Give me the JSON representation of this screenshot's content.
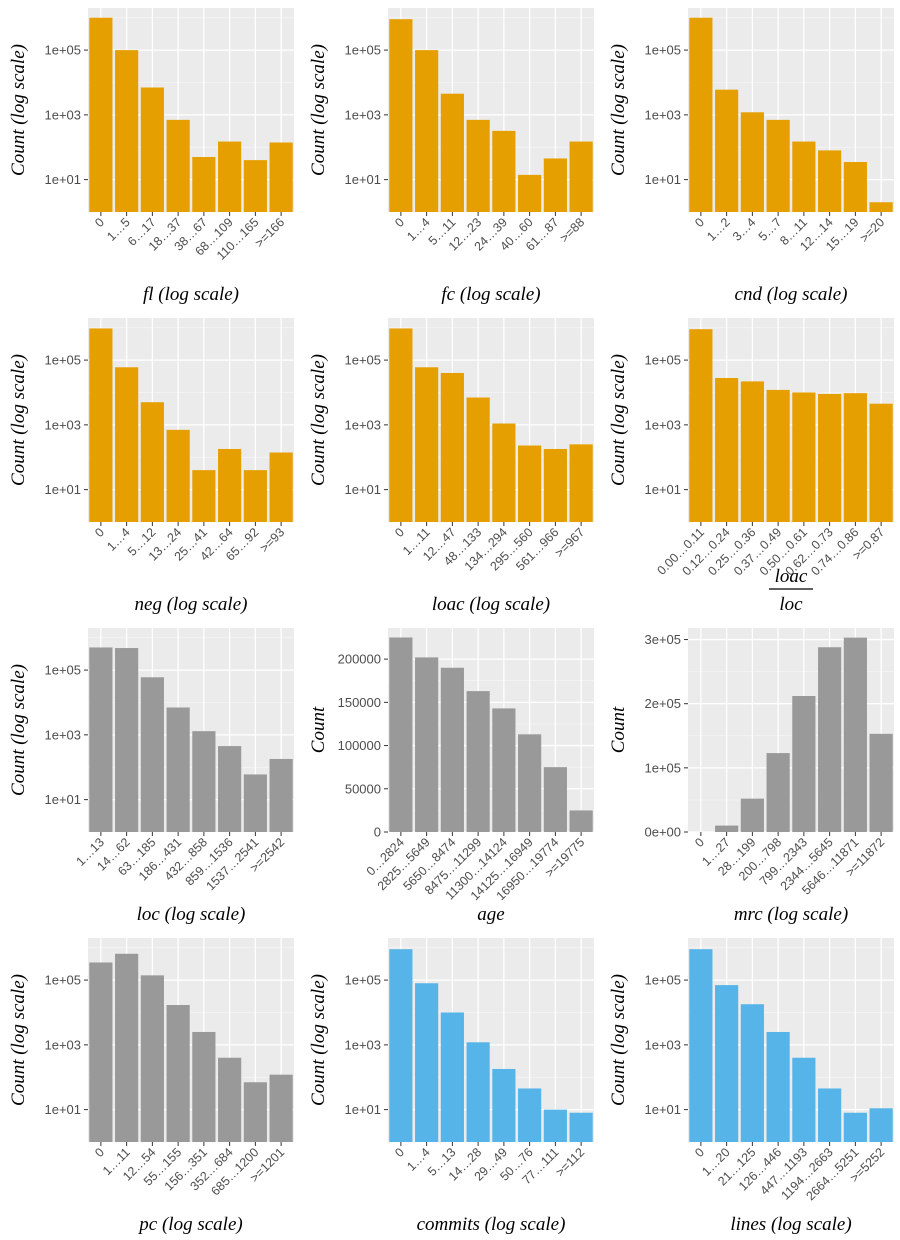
{
  "colors": {
    "orange": "#E69F00",
    "gray": "#999999",
    "blue": "#56B4E9",
    "panel_bg": "#EBEBEB",
    "grid_major": "#FFFFFF"
  },
  "chart_data": [
    {
      "id": "fl",
      "type": "bar",
      "log": true,
      "color": "orange",
      "ylabel": "Count (log scale)",
      "xlabel": "fl (log scale)",
      "categories": [
        "0",
        "1…5",
        "6…17",
        "18…37",
        "38…67",
        "68…109",
        "110…165",
        ">=166"
      ],
      "values": [
        1000000,
        100000,
        7000,
        700,
        50,
        150,
        40,
        140
      ],
      "yticks": [
        "1e+01",
        "1e+03",
        "1e+05"
      ]
    },
    {
      "id": "fc",
      "type": "bar",
      "log": true,
      "color": "orange",
      "ylabel": "Count (log scale)",
      "xlabel": "fc (log scale)",
      "categories": [
        "0",
        "1…4",
        "5…11",
        "12…23",
        "24…39",
        "40…60",
        "61…87",
        ">=88"
      ],
      "values": [
        900000,
        100000,
        4500,
        700,
        320,
        14,
        45,
        150
      ],
      "yticks": [
        "1e+01",
        "1e+03",
        "1e+05"
      ]
    },
    {
      "id": "cnd",
      "type": "bar",
      "log": true,
      "color": "orange",
      "ylabel": "Count (log scale)",
      "xlabel": "cnd (log scale)",
      "categories": [
        "0",
        "1…2",
        "3…4",
        "5…7",
        "8…11",
        "12…14",
        "15…19",
        ">=20"
      ],
      "values": [
        1000000,
        6000,
        1200,
        700,
        150,
        80,
        35,
        2
      ],
      "yticks": [
        "1e+01",
        "1e+03",
        "1e+05"
      ]
    },
    {
      "id": "neg",
      "type": "bar",
      "log": true,
      "color": "orange",
      "ylabel": "Count (log scale)",
      "xlabel": "neg (log scale)",
      "categories": [
        "0",
        "1…4",
        "5…12",
        "13…24",
        "25…41",
        "42…64",
        "65…92",
        ">=93"
      ],
      "values": [
        950000,
        60000,
        5000,
        700,
        40,
        180,
        40,
        140
      ],
      "yticks": [
        "1e+01",
        "1e+03",
        "1e+05"
      ]
    },
    {
      "id": "loac",
      "type": "bar",
      "log": true,
      "color": "orange",
      "ylabel": "Count (log scale)",
      "xlabel": "loac (log scale)",
      "categories": [
        "0",
        "1…11",
        "12…47",
        "48…133",
        "134…294",
        "295…560",
        "561…966",
        ">=967"
      ],
      "values": [
        950000,
        60000,
        40000,
        7000,
        1100,
        230,
        180,
        250
      ],
      "yticks": [
        "1e+01",
        "1e+03",
        "1e+05"
      ]
    },
    {
      "id": "ratio",
      "type": "bar",
      "log": true,
      "color": "orange",
      "ylabel": "Count (log scale)",
      "xlabel": "",
      "xlabel_num": "loac",
      "xlabel_den": "loc",
      "categories": [
        "0.00…0.11",
        "0.12…0.24",
        "0.25…0.36",
        "0.37…0.49",
        "0.50…0.61",
        "0.62…0.73",
        "0.74…0.86",
        ">=0.87"
      ],
      "values": [
        900000,
        28000,
        22000,
        12000,
        10000,
        9000,
        9500,
        4500
      ],
      "yticks": [
        "1e+01",
        "1e+03",
        "1e+05"
      ]
    },
    {
      "id": "loc",
      "type": "bar",
      "log": true,
      "color": "gray",
      "ylabel": "Count (log scale)",
      "xlabel": "loc (log scale)",
      "categories": [
        "1…13",
        "14…62",
        "63…185",
        "186…431",
        "432…858",
        "859…1536",
        "1537…2541",
        ">=2542"
      ],
      "values": [
        500000,
        480000,
        60000,
        7000,
        1300,
        450,
        60,
        180
      ],
      "yticks": [
        "1e+01",
        "1e+03",
        "1e+05"
      ]
    },
    {
      "id": "age",
      "type": "bar",
      "log": false,
      "color": "gray",
      "ylabel": "Count",
      "xlabel": "age",
      "categories": [
        "0…2824",
        "2825…5649",
        "5650…8474",
        "8475…11299",
        "11300…14124",
        "14125…16949",
        "16950…19774",
        ">=19775"
      ],
      "values": [
        225000,
        202000,
        190000,
        163000,
        143000,
        113000,
        75000,
        25000
      ],
      "ylim": [
        0,
        236000
      ],
      "ytick_values": [
        0,
        50000,
        100000,
        150000,
        200000
      ],
      "yticks": [
        "0",
        "50000",
        "100000",
        "150000",
        "200000"
      ]
    },
    {
      "id": "mrc",
      "type": "bar",
      "log": false,
      "color": "gray",
      "ylabel": "Count",
      "xlabel": "mrc (log scale)",
      "categories": [
        "0",
        "1…27",
        "28…199",
        "200…798",
        "799…2343",
        "2344…5645",
        "5646…11871",
        ">=11872"
      ],
      "values": [
        0,
        10000,
        52000,
        123000,
        212000,
        288000,
        303000,
        153000
      ],
      "ylim": [
        0,
        318000
      ],
      "ytick_values": [
        0,
        100000,
        200000,
        300000
      ],
      "yticks": [
        "0e+00",
        "1e+05",
        "2e+05",
        "3e+05"
      ]
    },
    {
      "id": "pc",
      "type": "bar",
      "log": true,
      "color": "gray",
      "ylabel": "Count (log scale)",
      "xlabel": "pc (log scale)",
      "categories": [
        "0",
        "1…11",
        "12…54",
        "55…155",
        "156…351",
        "352…684",
        "685…1200",
        ">=1201"
      ],
      "values": [
        350000,
        650000,
        140000,
        17000,
        2500,
        400,
        70,
        120
      ],
      "yticks": [
        "1e+01",
        "1e+03",
        "1e+05"
      ]
    },
    {
      "id": "commits",
      "type": "bar",
      "log": true,
      "color": "blue",
      "ylabel": "Count (log scale)",
      "xlabel": "commits (log scale)",
      "categories": [
        "0",
        "1…4",
        "5…13",
        "14…28",
        "29…49",
        "50…76",
        "77…111",
        ">=112"
      ],
      "values": [
        900000,
        80000,
        10000,
        1200,
        180,
        45,
        10,
        8
      ],
      "yticks": [
        "1e+01",
        "1e+03",
        "1e+05"
      ]
    },
    {
      "id": "lines",
      "type": "bar",
      "log": true,
      "color": "blue",
      "ylabel": "Count (log scale)",
      "xlabel": "lines (log scale)",
      "categories": [
        "0",
        "1…20",
        "21…125",
        "126…446",
        "447…1193",
        "1194…2663",
        "2664…5251",
        ">=5252"
      ],
      "values": [
        900000,
        70000,
        18000,
        2500,
        400,
        45,
        8,
        11
      ],
      "yticks": [
        "1e+01",
        "1e+03",
        "1e+05"
      ]
    }
  ]
}
